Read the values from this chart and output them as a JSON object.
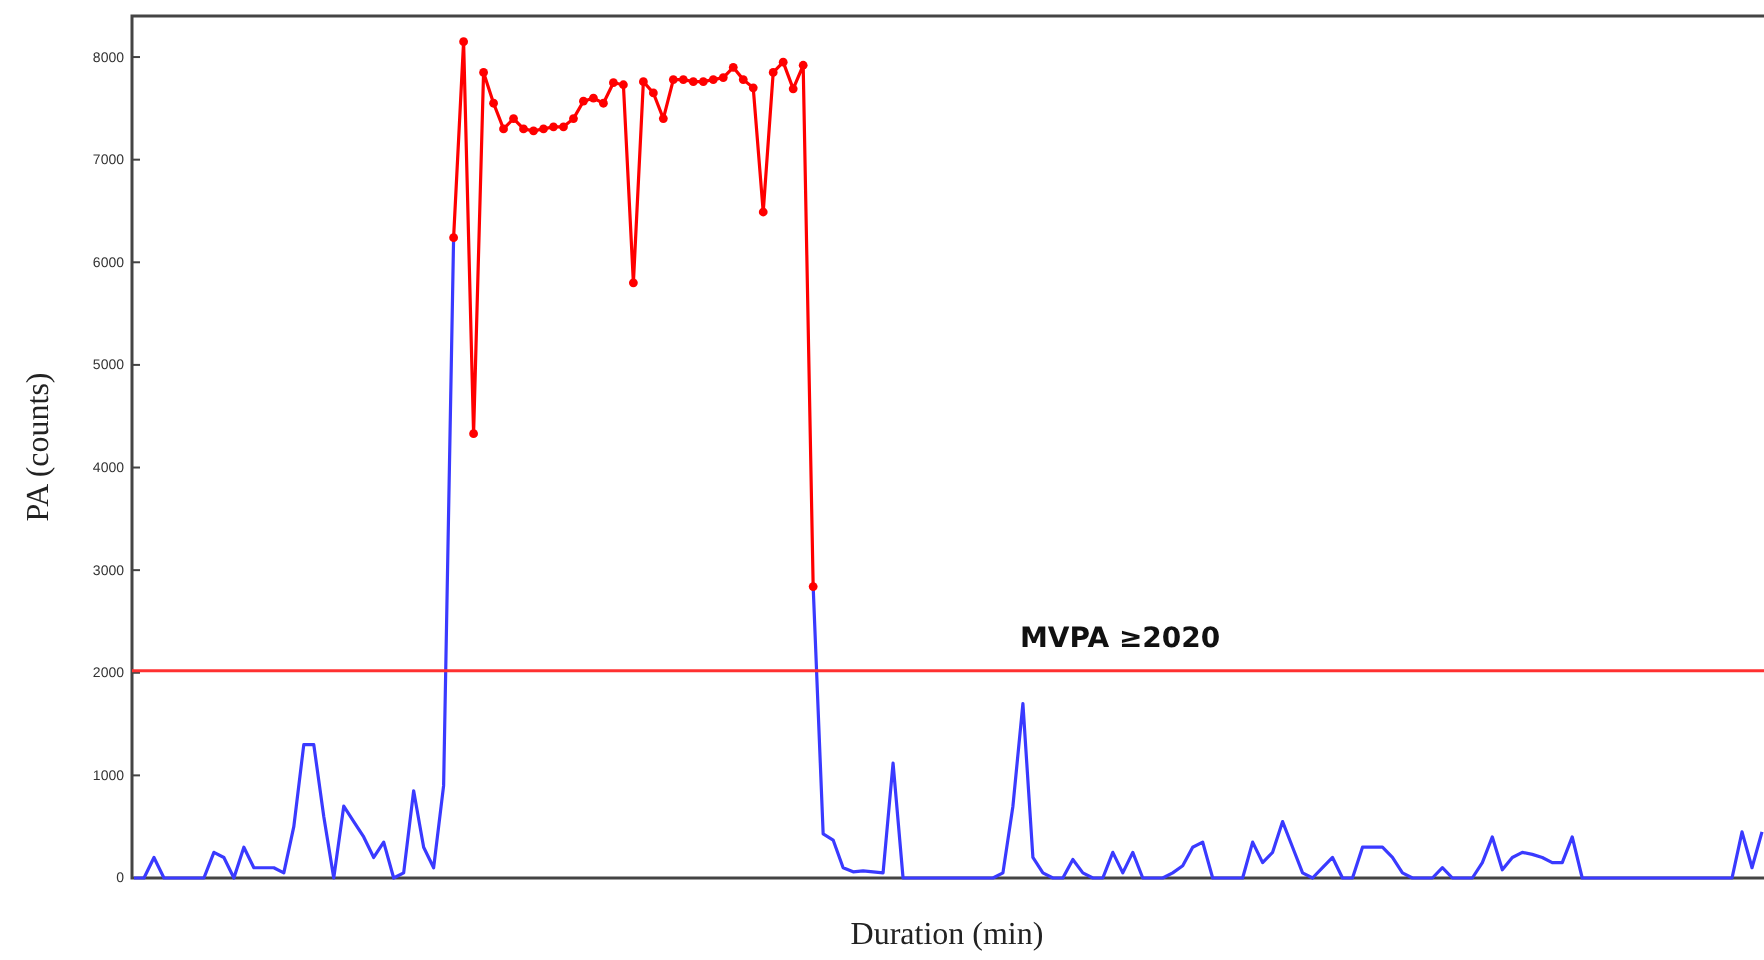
{
  "chart_data": {
    "type": "line",
    "xlabel": "Duration (min)",
    "ylabel": "PA (counts)",
    "categories": [
      null,
      null,
      null,
      null,
      null,
      null,
      null,
      null,
      null,
      null,
      null,
      null,
      null,
      null,
      null,
      null,
      null,
      null,
      null,
      null,
      null,
      null,
      null,
      null,
      null,
      null,
      null,
      null,
      null,
      null,
      null,
      null,
      null,
      null,
      null,
      null,
      null,
      null,
      null,
      null,
      null,
      null,
      null,
      null,
      null,
      null,
      null,
      null,
      null,
      null,
      null,
      null,
      null,
      null,
      null,
      null,
      null,
      null,
      null,
      null,
      null,
      null,
      null,
      null,
      null,
      null,
      null,
      null,
      null,
      null,
      null,
      null,
      null,
      null,
      null,
      null,
      null,
      null,
      null,
      null,
      null,
      null,
      null,
      null,
      null,
      null,
      null,
      null,
      null,
      null,
      null,
      null,
      null,
      null,
      null,
      null,
      null,
      null,
      null,
      null,
      null,
      null,
      null,
      null,
      null,
      null,
      null,
      null,
      null,
      null,
      null,
      null,
      null,
      null,
      null,
      null,
      null,
      null,
      null,
      null,
      null,
      null,
      null,
      null,
      null,
      null,
      null,
      null,
      null,
      null,
      null,
      null,
      null,
      null,
      null,
      null,
      null,
      null,
      null,
      null,
      null,
      null,
      null,
      null,
      null,
      null,
      null,
      null,
      null,
      null,
      null,
      null,
      null,
      null,
      null,
      null,
      null,
      null,
      null,
      null,
      null,
      null,
      null,
      null
    ],
    "series": [
      {
        "color": "#3a3aff",
        "marker": "none",
        "values": [
          0,
          0,
          200,
          0,
          0,
          0,
          0,
          0,
          250,
          200,
          0,
          300,
          100,
          100,
          100,
          50,
          500,
          1300,
          1300,
          600,
          0,
          700,
          550,
          400,
          200,
          350,
          0,
          50,
          850,
          300,
          100,
          900,
          6240,
          null,
          null,
          null,
          null,
          null,
          null,
          null,
          null,
          null,
          null,
          null,
          null,
          null,
          null,
          null,
          null,
          null,
          null,
          null,
          null,
          null,
          null,
          null,
          null,
          null,
          null,
          null,
          null,
          null,
          null,
          null,
          null,
          null,
          null,
          null,
          null,
          null,
          null,
          null,
          null,
          null,
          null,
          null,
          null,
          null,
          null,
          null,
          null,
          null,
          null,
          null,
          null,
          null,
          null,
          null,
          null,
          null,
          null,
          null,
          null,
          null,
          null,
          null,
          null,
          null,
          null,
          null,
          null,
          null,
          null,
          null,
          null,
          null,
          null,
          null,
          null,
          null,
          null,
          null,
          null,
          null,
          null,
          null,
          null,
          null,
          null,
          null,
          null,
          null,
          null,
          null,
          null,
          null,
          null,
          null,
          null,
          null,
          null,
          null,
          null,
          null,
          null,
          null,
          null,
          null,
          null,
          null,
          null,
          null,
          null,
          null,
          null,
          null,
          null,
          null,
          null,
          null,
          null,
          null,
          null,
          null,
          null,
          null,
          null,
          null,
          null,
          null,
          null,
          null,
          null,
          null
        ]
      },
      {
        "color": "#ff0000",
        "marker": "circle",
        "values": [
          null,
          null,
          null,
          null,
          null,
          null,
          null,
          null,
          null,
          null,
          null,
          null,
          null,
          null,
          null,
          null,
          null,
          null,
          null,
          null,
          null,
          null,
          null,
          null,
          null,
          null,
          null,
          null,
          null,
          null,
          null,
          null,
          6240,
          8150,
          4330,
          7850,
          7550,
          7300,
          7400,
          7300,
          7280,
          7300,
          7320,
          7320,
          7400,
          7570,
          7600,
          7550,
          7750,
          7730,
          5800,
          7760,
          7650,
          7400,
          7780,
          7780,
          7760,
          7760,
          7780,
          7800,
          7900,
          7780,
          7700,
          6490,
          7850,
          7950,
          7690,
          7920,
          2840,
          null,
          null,
          null,
          null,
          null,
          null,
          null,
          null,
          null,
          null,
          null,
          null,
          null,
          null,
          null,
          null,
          null,
          null,
          null,
          null,
          null,
          null,
          null,
          null,
          null,
          null,
          null,
          null,
          null,
          null,
          null,
          null,
          null,
          null,
          null,
          null,
          null,
          null,
          null,
          null,
          null,
          null,
          null,
          null,
          null,
          null,
          null,
          null,
          null,
          null,
          null,
          null,
          null,
          null,
          null,
          null,
          null,
          null,
          null,
          null,
          null,
          null,
          null,
          null,
          null,
          null,
          null,
          null,
          null,
          null,
          null,
          null,
          null,
          null,
          null,
          null,
          null,
          null,
          null,
          null,
          null,
          null,
          null,
          null,
          null,
          null,
          null,
          null,
          null,
          null,
          null,
          null,
          null,
          null,
          null
        ]
      },
      {
        "color": "#3a3aff",
        "marker": "none",
        "values": [
          null,
          null,
          null,
          null,
          null,
          null,
          null,
          null,
          null,
          null,
          null,
          null,
          null,
          null,
          null,
          null,
          null,
          null,
          null,
          null,
          null,
          null,
          null,
          null,
          null,
          null,
          null,
          null,
          null,
          null,
          null,
          null,
          null,
          null,
          null,
          null,
          null,
          null,
          null,
          null,
          null,
          null,
          null,
          null,
          null,
          null,
          null,
          null,
          null,
          null,
          null,
          null,
          null,
          null,
          null,
          null,
          null,
          null,
          null,
          null,
          null,
          null,
          null,
          null,
          null,
          null,
          null,
          null,
          2840,
          430,
          370,
          100,
          60,
          70,
          60,
          50,
          1120,
          0,
          0,
          0,
          0,
          0,
          0,
          0,
          0,
          0,
          0,
          50,
          700,
          1700,
          200,
          50,
          0,
          0,
          180,
          50,
          0,
          0,
          250,
          50,
          250,
          0,
          0,
          0,
          50,
          120,
          300,
          350,
          0,
          0,
          0,
          0,
          350,
          150,
          250,
          550,
          300,
          50,
          0,
          100,
          200,
          0,
          0,
          300,
          300,
          300,
          200,
          50,
          0,
          0,
          0,
          100,
          0,
          0,
          0,
          150,
          400,
          80,
          200,
          250,
          230,
          200,
          150,
          150,
          400,
          0,
          0,
          0,
          0,
          0,
          0,
          0,
          0,
          0,
          0,
          0,
          0,
          0,
          0,
          0,
          0,
          450,
          100,
          450
        ]
      }
    ],
    "ylim": [
      0,
      8400
    ],
    "yticks": [
      0,
      1000,
      2000,
      3000,
      4000,
      5000,
      6000,
      7000,
      8000
    ],
    "ref_lines": [
      {
        "axis": "y",
        "value": 2020,
        "label": "MVPA ≥2020",
        "color": "#ff3030"
      }
    ],
    "tick_labels": "y",
    "grid": false
  }
}
